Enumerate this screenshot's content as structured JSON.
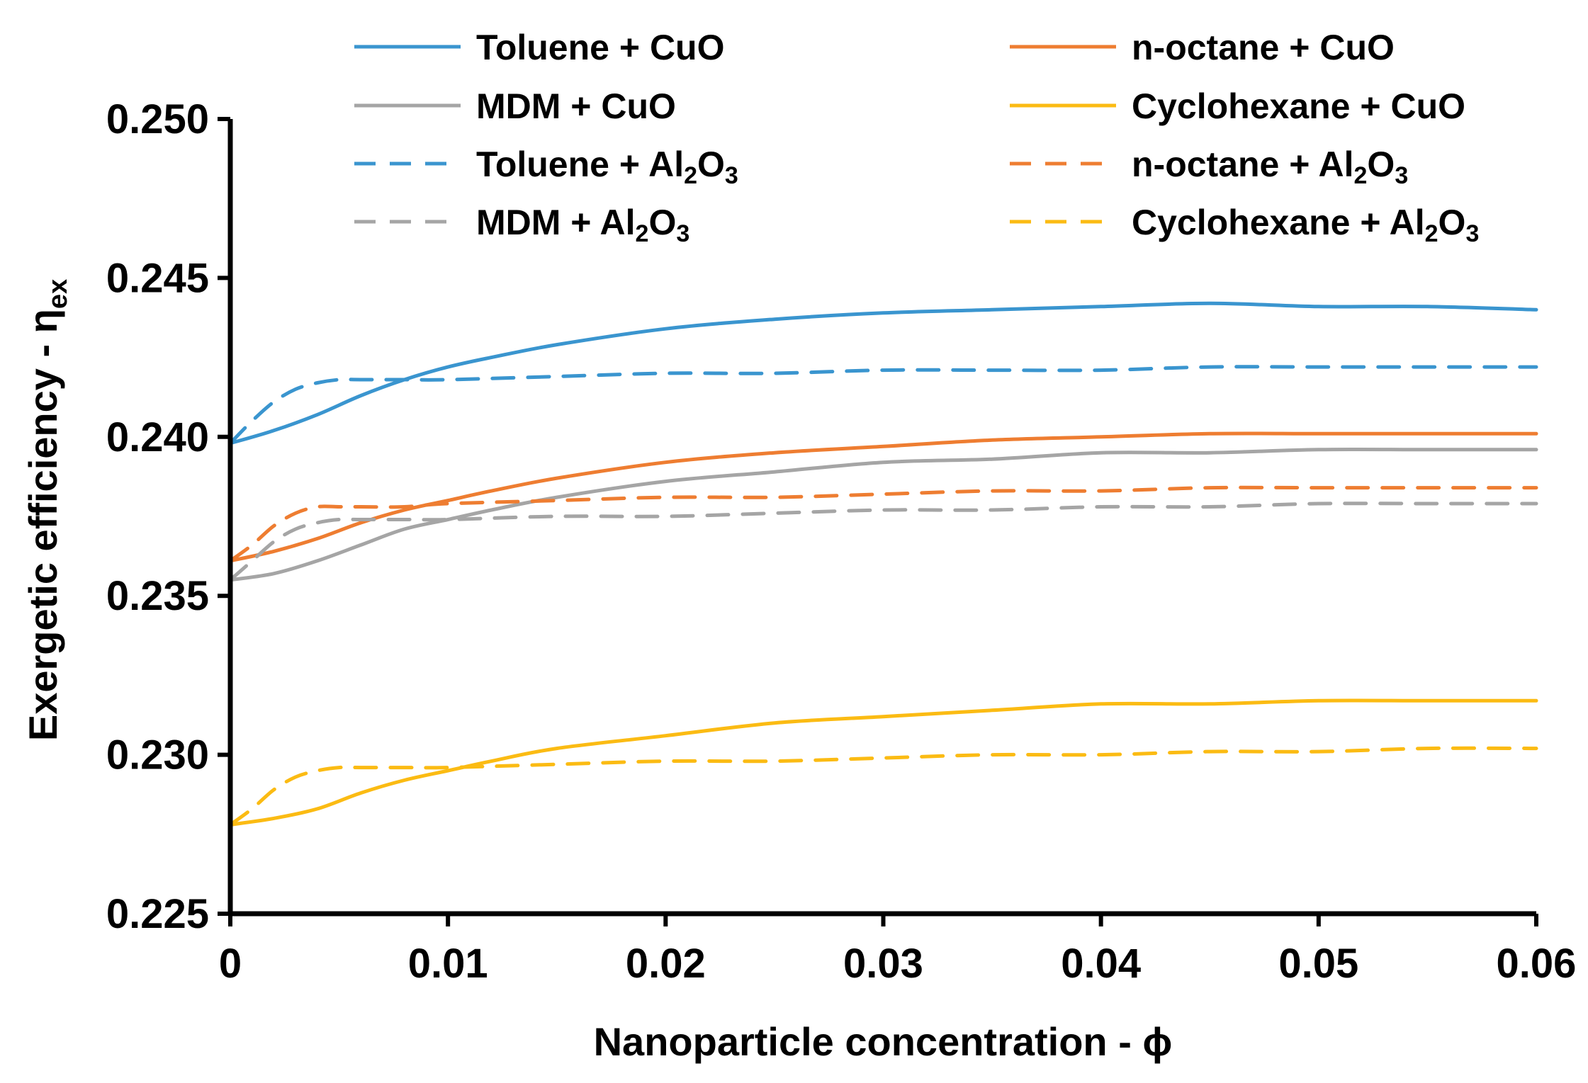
{
  "chart_data": {
    "type": "line",
    "title": "",
    "xlabel": "Nanoparticle concentration - ϕ",
    "ylabel": "Exergetic efficiency - η",
    "ylabel_sub": "ex",
    "xlim": [
      0,
      0.06
    ],
    "ylim": [
      0.225,
      0.25
    ],
    "xticks": [
      0,
      0.01,
      0.02,
      0.03,
      0.04,
      0.05,
      0.06
    ],
    "xtick_labels": [
      "0",
      "0.01",
      "0.02",
      "0.03",
      "0.04",
      "0.05",
      "0.06"
    ],
    "yticks": [
      0.225,
      0.23,
      0.235,
      0.24,
      0.245,
      0.25
    ],
    "ytick_labels": [
      "0.225",
      "0.230",
      "0.235",
      "0.240",
      "0.245",
      "0.250"
    ],
    "grid": false,
    "legend_position": "top",
    "series": [
      {
        "name": "Toluene + CuO",
        "label_main": "Toluene + CuO",
        "label_sub": "",
        "label_tail": "",
        "color": "#3a95cf",
        "dash": "solid",
        "x": [
          0,
          0.002,
          0.004,
          0.006,
          0.008,
          0.01,
          0.012,
          0.015,
          0.02,
          0.025,
          0.03,
          0.035,
          0.04,
          0.045,
          0.05,
          0.055,
          0.06
        ],
        "y": [
          0.2398,
          0.2402,
          0.2407,
          0.2413,
          0.2418,
          0.2422,
          0.2425,
          0.2429,
          0.2434,
          0.2437,
          0.2439,
          0.244,
          0.2441,
          0.2442,
          0.2441,
          0.2441,
          0.244
        ]
      },
      {
        "name": "n-octane + CuO",
        "label_main": "n-octane + CuO",
        "label_sub": "",
        "label_tail": "",
        "color": "#ee7d31",
        "dash": "solid",
        "x": [
          0,
          0.002,
          0.004,
          0.006,
          0.008,
          0.01,
          0.012,
          0.015,
          0.02,
          0.025,
          0.03,
          0.035,
          0.04,
          0.045,
          0.05,
          0.055,
          0.06
        ],
        "y": [
          0.2361,
          0.2364,
          0.2368,
          0.2373,
          0.2377,
          0.238,
          0.2383,
          0.2387,
          0.2392,
          0.2395,
          0.2397,
          0.2399,
          0.24,
          0.2401,
          0.2401,
          0.2401,
          0.2401
        ]
      },
      {
        "name": "MDM + CuO",
        "label_main": "MDM + CuO",
        "label_sub": "",
        "label_tail": "",
        "color": "#a5a5a5",
        "dash": "solid",
        "x": [
          0,
          0.002,
          0.004,
          0.006,
          0.008,
          0.01,
          0.012,
          0.015,
          0.02,
          0.025,
          0.03,
          0.035,
          0.04,
          0.045,
          0.05,
          0.055,
          0.06
        ],
        "y": [
          0.2355,
          0.2357,
          0.2361,
          0.2366,
          0.2371,
          0.2374,
          0.2377,
          0.2381,
          0.2386,
          0.2389,
          0.2392,
          0.2393,
          0.2395,
          0.2395,
          0.2396,
          0.2396,
          0.2396
        ]
      },
      {
        "name": "Cyclohexane + CuO",
        "label_main": "Cyclohexane + CuO",
        "label_sub": "",
        "label_tail": "",
        "color": "#fbbb13",
        "dash": "solid",
        "x": [
          0,
          0.002,
          0.004,
          0.006,
          0.008,
          0.01,
          0.012,
          0.015,
          0.02,
          0.025,
          0.03,
          0.035,
          0.04,
          0.045,
          0.05,
          0.055,
          0.06
        ],
        "y": [
          0.2278,
          0.228,
          0.2283,
          0.2288,
          0.2292,
          0.2295,
          0.2298,
          0.2302,
          0.2306,
          0.231,
          0.2312,
          0.2314,
          0.2316,
          0.2316,
          0.2317,
          0.2317,
          0.2317
        ]
      },
      {
        "name": "Toluene + Al2O3",
        "label_main": "Toluene + Al",
        "label_sub": "2",
        "label_tail": "O3",
        "color": "#3a95cf",
        "dash": "dashed",
        "x": [
          0,
          0.001,
          0.002,
          0.003,
          0.004,
          0.005,
          0.006,
          0.008,
          0.01,
          0.015,
          0.02,
          0.025,
          0.03,
          0.035,
          0.04,
          0.045,
          0.05,
          0.055,
          0.06
        ],
        "y": [
          0.2398,
          0.2405,
          0.2411,
          0.2415,
          0.2417,
          0.2418,
          0.2418,
          0.2418,
          0.2418,
          0.2419,
          0.242,
          0.242,
          0.2421,
          0.2421,
          0.2421,
          0.2422,
          0.2422,
          0.2422,
          0.2422
        ]
      },
      {
        "name": "n-octane + Al2O3",
        "label_main": "n-octane + Al",
        "label_sub": "2",
        "label_tail": "O3",
        "color": "#ee7d31",
        "dash": "dashed",
        "x": [
          0,
          0.001,
          0.002,
          0.003,
          0.004,
          0.005,
          0.006,
          0.008,
          0.01,
          0.015,
          0.02,
          0.025,
          0.03,
          0.035,
          0.04,
          0.045,
          0.05,
          0.055,
          0.06
        ],
        "y": [
          0.2361,
          0.2366,
          0.2372,
          0.2376,
          0.2378,
          0.2378,
          0.2378,
          0.2378,
          0.2379,
          0.238,
          0.2381,
          0.2381,
          0.2382,
          0.2383,
          0.2383,
          0.2384,
          0.2384,
          0.2384,
          0.2384
        ]
      },
      {
        "name": "MDM + Al2O3",
        "label_main": "MDM + Al",
        "label_sub": "2",
        "label_tail": "O3",
        "color": "#a5a5a5",
        "dash": "dashed",
        "x": [
          0,
          0.001,
          0.002,
          0.003,
          0.004,
          0.005,
          0.006,
          0.008,
          0.01,
          0.015,
          0.02,
          0.025,
          0.03,
          0.035,
          0.04,
          0.045,
          0.05,
          0.055,
          0.06
        ],
        "y": [
          0.2355,
          0.2361,
          0.2367,
          0.2371,
          0.2373,
          0.2374,
          0.2374,
          0.2374,
          0.2374,
          0.2375,
          0.2375,
          0.2376,
          0.2377,
          0.2377,
          0.2378,
          0.2378,
          0.2379,
          0.2379,
          0.2379
        ]
      },
      {
        "name": "Cyclohexane + Al2O3",
        "label_main": "Cyclohexane + Al",
        "label_sub": "2",
        "label_tail": "O3",
        "color": "#fbbb13",
        "dash": "dashed",
        "x": [
          0,
          0.001,
          0.002,
          0.003,
          0.004,
          0.005,
          0.006,
          0.008,
          0.01,
          0.015,
          0.02,
          0.025,
          0.03,
          0.035,
          0.04,
          0.045,
          0.05,
          0.055,
          0.06
        ],
        "y": [
          0.2278,
          0.2283,
          0.2289,
          0.2293,
          0.2295,
          0.2296,
          0.2296,
          0.2296,
          0.2296,
          0.2297,
          0.2298,
          0.2298,
          0.2299,
          0.23,
          0.23,
          0.2301,
          0.2301,
          0.2302,
          0.2302
        ]
      }
    ]
  }
}
